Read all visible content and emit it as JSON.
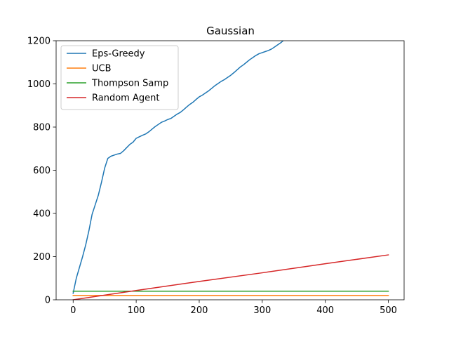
{
  "chart_data": {
    "type": "line",
    "title": "Gaussian",
    "xlabel": "",
    "ylabel": "",
    "xlim": [
      -27,
      525
    ],
    "ylim": [
      0,
      1200
    ],
    "xticks": [
      0,
      100,
      200,
      300,
      400,
      500
    ],
    "yticks": [
      0,
      200,
      400,
      600,
      800,
      1000,
      1200
    ],
    "legend_position": "top-left",
    "grid": false,
    "series": [
      {
        "name": "Eps-Greedy",
        "color": "#1f77b4",
        "x": [
          0,
          5,
          10,
          15,
          20,
          25,
          30,
          35,
          40,
          45,
          50,
          55,
          60,
          65,
          70,
          75,
          80,
          85,
          90,
          95,
          100,
          105,
          110,
          115,
          120,
          125,
          130,
          135,
          140,
          145,
          150,
          155,
          160,
          165,
          170,
          175,
          180,
          185,
          190,
          195,
          200,
          205,
          210,
          215,
          220,
          225,
          230,
          235,
          240,
          245,
          250,
          255,
          260,
          265,
          270,
          275,
          280,
          285,
          290,
          295,
          300,
          305,
          310,
          315,
          320,
          325,
          330,
          335
        ],
        "y": [
          30,
          100,
          150,
          200,
          255,
          320,
          395,
          440,
          485,
          545,
          610,
          655,
          665,
          670,
          675,
          678,
          690,
          705,
          720,
          730,
          748,
          755,
          762,
          768,
          778,
          790,
          802,
          812,
          822,
          828,
          835,
          840,
          850,
          860,
          868,
          880,
          893,
          905,
          915,
          928,
          940,
          948,
          958,
          968,
          980,
          992,
          1002,
          1012,
          1020,
          1030,
          1040,
          1052,
          1065,
          1078,
          1088,
          1100,
          1112,
          1122,
          1132,
          1140,
          1145,
          1150,
          1155,
          1162,
          1172,
          1182,
          1192,
          1205
        ]
      },
      {
        "name": "UCB",
        "color": "#ff7f0e",
        "x": [
          0,
          500
        ],
        "y": [
          20,
          20
        ]
      },
      {
        "name": "Thompson Samp",
        "color": "#2ca02c",
        "x": [
          0,
          500
        ],
        "y": [
          40,
          40
        ]
      },
      {
        "name": "Random Agent",
        "color": "#d62728",
        "x": [
          0,
          100,
          200,
          300,
          400,
          500
        ],
        "y": [
          0,
          43,
          85,
          125,
          167,
          208
        ]
      }
    ]
  }
}
